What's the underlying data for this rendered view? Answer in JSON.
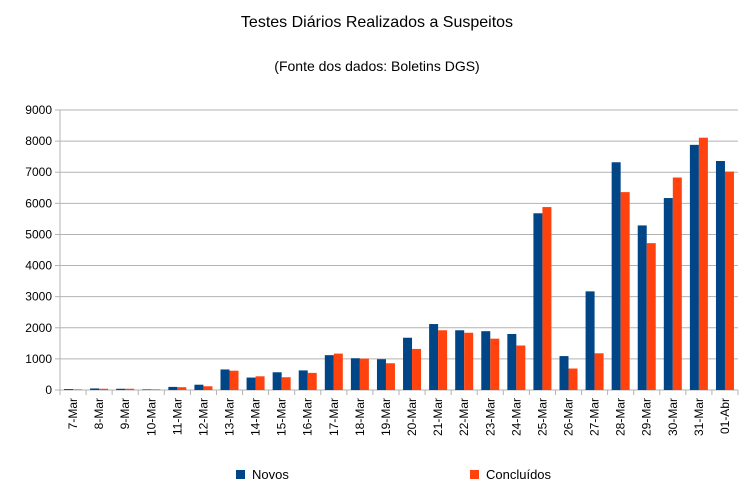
{
  "chart_data": {
    "type": "bar",
    "title": "Testes Diários Realizados a Suspeitos",
    "subtitle": "(Fonte dos dados: Boletins DGS)",
    "xlabel": "",
    "ylabel": "",
    "ylim": [
      0,
      9000
    ],
    "yticks": [
      0,
      1000,
      2000,
      3000,
      4000,
      5000,
      6000,
      7000,
      8000,
      9000
    ],
    "grid": true,
    "legend": "bottom",
    "categories": [
      "7-Mar",
      "8-Mar",
      "9-Mar",
      "10-Mar",
      "11-Mar",
      "12-Mar",
      "13-Mar",
      "14-Mar",
      "15-Mar",
      "16-Mar",
      "17-Mar",
      "18-Mar",
      "19-Mar",
      "20-Mar",
      "21-Mar",
      "22-Mar",
      "23-Mar",
      "24-Mar",
      "25-Mar",
      "26-Mar",
      "27-Mar",
      "28-Mar",
      "29-Mar",
      "30-Mar",
      "31-Mar",
      "01-Abr"
    ],
    "series": [
      {
        "name": "Novos",
        "color": "#004586",
        "values": [
          30,
          50,
          40,
          20,
          100,
          170,
          660,
          400,
          570,
          630,
          1120,
          1020,
          990,
          1680,
          2120,
          1920,
          1890,
          1800,
          5680,
          1090,
          3170,
          7320,
          5290,
          6170,
          7880,
          7360
        ]
      },
      {
        "name": "Concluídos",
        "color": "#ff420e",
        "values": [
          20,
          40,
          40,
          20,
          90,
          120,
          620,
          440,
          410,
          550,
          1170,
          1010,
          860,
          1320,
          1920,
          1840,
          1650,
          1430,
          5880,
          690,
          1180,
          6360,
          4720,
          6830,
          8110,
          7020
        ]
      }
    ]
  }
}
